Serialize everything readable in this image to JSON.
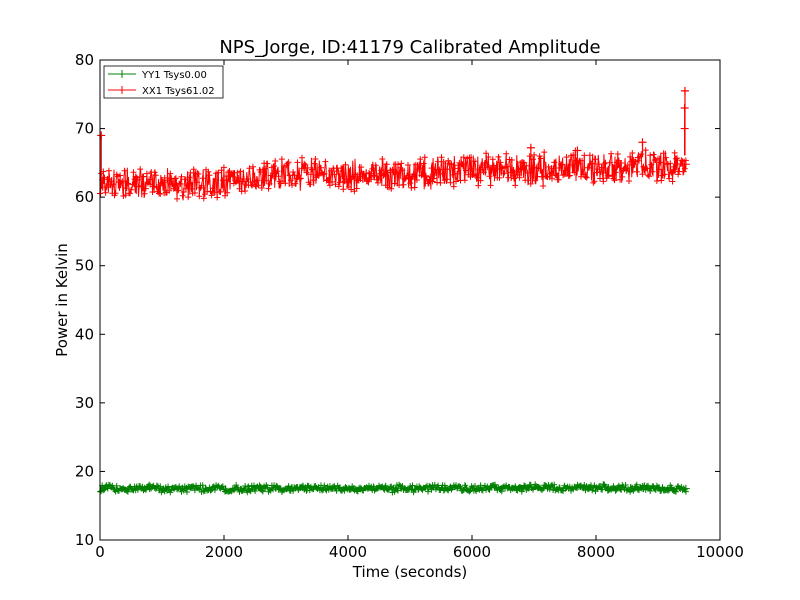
{
  "chart_data": {
    "type": "line",
    "title": "NPS_Jorge, ID:41179 Calibrated Amplitude",
    "xlabel": "Time (seconds)",
    "ylabel": "Power in Kelvin",
    "xlim": [
      0,
      10000
    ],
    "ylim": [
      10,
      80
    ],
    "x_ticks": [
      0,
      2000,
      4000,
      6000,
      8000,
      10000
    ],
    "y_ticks": [
      10,
      20,
      30,
      40,
      50,
      60,
      70,
      80
    ],
    "x_tick_labels": [
      "0",
      "2000",
      "4000",
      "6000",
      "8000",
      "10000"
    ],
    "y_tick_labels": [
      "10",
      "20",
      "30",
      "40",
      "50",
      "60",
      "70",
      "80"
    ],
    "grid": false,
    "legend_position": "upper-left",
    "marker": "plus",
    "series": [
      {
        "name": "YY1 Tsys0.00",
        "color": "#008000",
        "x": [
          0,
          1000,
          2000,
          3000,
          4000,
          5000,
          6000,
          7000,
          8000,
          9000,
          9450
        ],
        "center": [
          17.5,
          17.5,
          17.5,
          17.5,
          17.5,
          17.5,
          17.6,
          17.6,
          17.6,
          17.6,
          17.5
        ],
        "band": 0.6,
        "spikes": []
      },
      {
        "name": "XX1 Tsys61.02",
        "color": "#ff0000",
        "x": [
          0,
          500,
          1000,
          1500,
          2000,
          2500,
          3000,
          3500,
          4000,
          4500,
          5000,
          5500,
          6000,
          6500,
          7000,
          7500,
          8000,
          8500,
          9000,
          9450
        ],
        "center": [
          61.8,
          62.0,
          62.0,
          62.1,
          62.3,
          62.8,
          63.2,
          63.4,
          63.4,
          63.0,
          63.3,
          63.6,
          64.0,
          64.2,
          64.0,
          64.3,
          64.3,
          64.4,
          64.6,
          64.8
        ],
        "band": 2.6,
        "spikes": [
          {
            "x": 20,
            "y": 69.0
          },
          {
            "x": 6950,
            "y": 67.2
          },
          {
            "x": 7700,
            "y": 66.8
          },
          {
            "x": 8750,
            "y": 68.0
          },
          {
            "x": 9430,
            "y": 70.0
          },
          {
            "x": 9430,
            "y": 73.0
          },
          {
            "x": 9435,
            "y": 75.5
          }
        ]
      }
    ]
  }
}
